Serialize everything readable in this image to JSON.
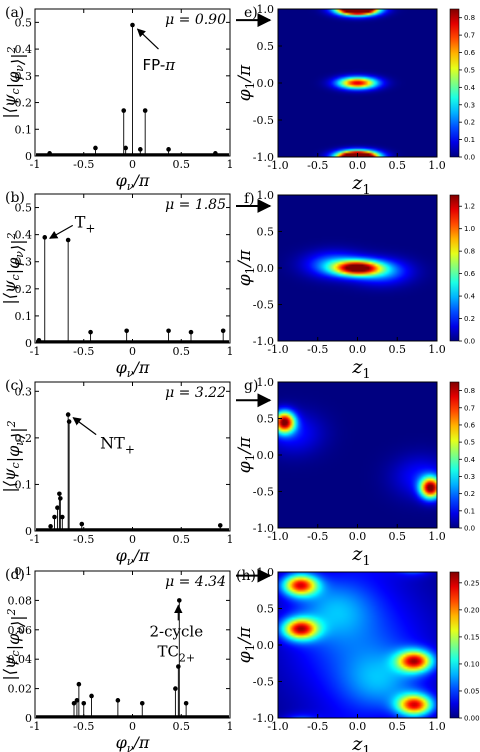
{
  "chart_data": [
    {
      "type": "scatter",
      "panel_label": "(a)",
      "mu_label": "μ = 0.90",
      "annotation": "FP-π",
      "annotation_point": [
        0.0,
        0.49
      ],
      "ylabel": "|⟨ψc|φν⟩|²",
      "xlabel": "φν/π",
      "xlim": [
        -1,
        1
      ],
      "ylim": [
        0,
        0.55
      ],
      "yticks": [
        "0",
        "0.1",
        "0.2",
        "0.3",
        "0.4",
        "0.5"
      ],
      "ytick_values": [
        0,
        0.1,
        0.2,
        0.3,
        0.4,
        0.5
      ],
      "xticks": [
        "-1",
        "-0.5",
        "0",
        "0.5",
        "1"
      ],
      "xtick_values": [
        -1,
        -0.5,
        0,
        0.5,
        1
      ],
      "stems": [
        {
          "x": 0.0,
          "y": 0.49
        },
        {
          "x": -0.09,
          "y": 0.17
        },
        {
          "x": 0.13,
          "y": 0.17
        },
        {
          "x": -0.07,
          "y": 0.03
        },
        {
          "x": 0.08,
          "y": 0.025
        },
        {
          "x": -0.38,
          "y": 0.03
        },
        {
          "x": 0.37,
          "y": 0.025
        },
        {
          "x": -0.85,
          "y": 0.01
        },
        {
          "x": 0.85,
          "y": 0.01
        }
      ]
    },
    {
      "type": "scatter",
      "panel_label": "(b)",
      "mu_label": "μ = 1.85",
      "annotation": "T+",
      "annotation_point": [
        -0.9,
        0.39
      ],
      "ylabel": "|⟨ψc|φν⟩|²",
      "xlabel": "φν/π",
      "xlim": [
        -1,
        1
      ],
      "ylim": [
        0,
        0.55
      ],
      "yticks": [
        "0",
        "0.1",
        "0.2",
        "0.3",
        "0.4",
        "0.5"
      ],
      "ytick_values": [
        0,
        0.1,
        0.2,
        0.3,
        0.4,
        0.5
      ],
      "xticks": [
        "-1",
        "-0.5",
        "0",
        "0.5",
        "1"
      ],
      "xtick_values": [
        -1,
        -0.5,
        0,
        0.5,
        1
      ],
      "stems": [
        {
          "x": -0.9,
          "y": 0.39
        },
        {
          "x": -0.66,
          "y": 0.38
        },
        {
          "x": -0.43,
          "y": 0.04
        },
        {
          "x": -0.06,
          "y": 0.045
        },
        {
          "x": 0.37,
          "y": 0.045
        },
        {
          "x": 0.6,
          "y": 0.04
        },
        {
          "x": 0.93,
          "y": 0.045
        },
        {
          "x": -0.96,
          "y": 0.01
        }
      ]
    },
    {
      "type": "scatter",
      "panel_label": "(c)",
      "mu_label": "μ = 3.22",
      "annotation": "NT+",
      "annotation_point": [
        -0.66,
        0.25
      ],
      "ylabel": "|⟨ψc|φν⟩|²",
      "xlabel": "φν/π",
      "xlim": [
        -1,
        1
      ],
      "ylim": [
        0,
        0.32
      ],
      "yticks": [
        "0",
        "0.1",
        "0.2",
        "0.3"
      ],
      "ytick_values": [
        0,
        0.1,
        0.2,
        0.3
      ],
      "xticks": [
        "-1",
        "-0.5",
        "0",
        "0.5",
        "1"
      ],
      "xtick_values": [
        -1,
        -0.5,
        0,
        0.5,
        1
      ],
      "stems": [
        {
          "x": -0.66,
          "y": 0.25
        },
        {
          "x": -0.65,
          "y": 0.235
        },
        {
          "x": -0.75,
          "y": 0.08
        },
        {
          "x": -0.74,
          "y": 0.07
        },
        {
          "x": -0.77,
          "y": 0.05
        },
        {
          "x": -0.8,
          "y": 0.03
        },
        {
          "x": -0.72,
          "y": 0.03
        },
        {
          "x": -0.52,
          "y": 0.015
        },
        {
          "x": -0.84,
          "y": 0.01
        },
        {
          "x": 0.9,
          "y": 0.012
        }
      ]
    },
    {
      "type": "scatter",
      "panel_label": "(d)",
      "mu_label": "μ = 4.34",
      "annotation": "2-cycle TC2+",
      "annotation_point": [
        0.48,
        0.08
      ],
      "ylabel": "|⟨ψc|φν⟩|²",
      "xlabel": "φν/π",
      "xlim": [
        -1,
        1
      ],
      "ylim": [
        0,
        0.1
      ],
      "yticks": [
        "0",
        "0.02",
        "0.04",
        "0.06",
        "0.08",
        "0.1"
      ],
      "ytick_values": [
        0,
        0.02,
        0.04,
        0.06,
        0.08,
        0.1
      ],
      "xticks": [
        "-1",
        "-0.5",
        "0",
        "0.5",
        "1"
      ],
      "xtick_values": [
        -1,
        -0.5,
        0,
        0.5,
        1
      ],
      "stems": [
        {
          "x": 0.48,
          "y": 0.08
        },
        {
          "x": 0.47,
          "y": 0.035
        },
        {
          "x": 0.44,
          "y": 0.02
        },
        {
          "x": -0.55,
          "y": 0.023
        },
        {
          "x": -0.57,
          "y": 0.012
        },
        {
          "x": -0.5,
          "y": 0.01
        },
        {
          "x": -0.42,
          "y": 0.015
        },
        {
          "x": -0.6,
          "y": 0.01
        },
        {
          "x": 0.55,
          "y": 0.01
        },
        {
          "x": 0.1,
          "y": 0.01
        },
        {
          "x": -0.15,
          "y": 0.012
        }
      ]
    },
    {
      "type": "heatmap",
      "panel_label": "e)",
      "xlabel": "z1",
      "ylabel": "φ1/π",
      "xlim": [
        -1,
        1
      ],
      "ylim": [
        -1,
        1
      ],
      "xticks": [
        "-1.0",
        "-0.5",
        "0.0",
        "0.5",
        "1.0"
      ],
      "yticks": [
        "-1.0",
        "-0.5",
        "0.0",
        "0.5",
        "1.0"
      ],
      "arrow_at_y": 0.85,
      "colorbar_max": 0.85,
      "colorbar_ticks": [
        "0.0",
        "0.1",
        "0.2",
        "0.3",
        "0.4",
        "0.5",
        "0.6",
        "0.7",
        "0.8"
      ],
      "colorbar_tick_values": [
        0,
        0.1,
        0.2,
        0.3,
        0.4,
        0.5,
        0.6,
        0.7,
        0.8
      ],
      "blobs": [
        {
          "z": 0.0,
          "phi": 0.0,
          "sz": 0.17,
          "sp": 0.055,
          "a": 0.78
        },
        {
          "z": 0.0,
          "phi": 1.0,
          "sz": 0.17,
          "sp": 0.055,
          "a": 0.78
        },
        {
          "z": 0.0,
          "phi": -1.0,
          "sz": 0.17,
          "sp": 0.055,
          "a": 0.78
        }
      ]
    },
    {
      "type": "heatmap",
      "panel_label": "f)",
      "xlabel": "z1",
      "ylabel": "φ1/π",
      "xlim": [
        -1,
        1
      ],
      "ylim": [
        -1,
        1
      ],
      "xticks": [
        "-1.0",
        "-0.5",
        "0.0",
        "0.5",
        "1.0"
      ],
      "yticks": [
        "-1.0",
        "-0.5",
        "0.0",
        "0.5",
        "1.0"
      ],
      "arrow_at_y": 0.85,
      "colorbar_max": 1.3,
      "colorbar_ticks": [
        "0.0",
        "0.2",
        "0.4",
        "0.6",
        "0.8",
        "1.0",
        "1.2"
      ],
      "colorbar_tick_values": [
        0,
        0.2,
        0.4,
        0.6,
        0.8,
        1.0,
        1.2
      ],
      "blobs": [
        {
          "z": 0.0,
          "phi": 0.0,
          "sz": 0.2,
          "sp": 0.07,
          "a": 1.25
        },
        {
          "z": -0.3,
          "phi": 0.05,
          "sz": 0.25,
          "sp": 0.12,
          "a": 0.35
        },
        {
          "z": 0.3,
          "phi": -0.05,
          "sz": 0.25,
          "sp": 0.12,
          "a": 0.35
        }
      ]
    },
    {
      "type": "heatmap",
      "panel_label": "g)",
      "xlabel": "z1",
      "ylabel": "φ1/π",
      "xlim": [
        -1,
        1
      ],
      "ylim": [
        -1,
        1
      ],
      "xticks": [
        "-1.0",
        "-0.5",
        "0.0",
        "0.5",
        "1.0"
      ],
      "yticks": [
        "-1.0",
        "-0.5",
        "0.0",
        "0.5",
        "1.0"
      ],
      "arrow_at_y": 0.75,
      "colorbar_max": 0.85,
      "colorbar_ticks": [
        "0.0",
        "0.1",
        "0.2",
        "0.3",
        "0.4",
        "0.5",
        "0.6",
        "0.7",
        "0.8"
      ],
      "colorbar_tick_values": [
        0,
        0.1,
        0.2,
        0.3,
        0.4,
        0.5,
        0.6,
        0.7,
        0.8
      ],
      "blobs": [
        {
          "z": -0.92,
          "phi": 0.45,
          "sz": 0.09,
          "sp": 0.1,
          "a": 0.82
        },
        {
          "z": 0.92,
          "phi": -0.45,
          "sz": 0.09,
          "sp": 0.1,
          "a": 0.82
        },
        {
          "z": -0.8,
          "phi": 0.3,
          "sz": 0.25,
          "sp": 0.2,
          "a": 0.12
        },
        {
          "z": 0.8,
          "phi": -0.3,
          "sz": 0.25,
          "sp": 0.2,
          "a": 0.12
        }
      ]
    },
    {
      "type": "heatmap",
      "panel_label": "(h)",
      "xlabel": "z1",
      "ylabel": "φ1/π",
      "xlim": [
        -1,
        1
      ],
      "ylim": [
        -1,
        1
      ],
      "xticks": [
        "-1.0",
        "-0.5",
        "0.0",
        "0.5",
        "1.0"
      ],
      "yticks": [
        "-1.0",
        "-0.5",
        "0.0",
        "0.5",
        "1.0"
      ],
      "arrow_at_y": 0.95,
      "colorbar_max": 0.27,
      "colorbar_ticks": [
        "0.00",
        "0.05",
        "0.10",
        "0.15",
        "0.20",
        "0.25"
      ],
      "colorbar_tick_values": [
        0,
        0.05,
        0.1,
        0.15,
        0.2,
        0.25
      ],
      "blobs": [
        {
          "z": -0.72,
          "phi": 0.82,
          "sz": 0.15,
          "sp": 0.1,
          "a": 0.22
        },
        {
          "z": -0.72,
          "phi": 0.22,
          "sz": 0.15,
          "sp": 0.1,
          "a": 0.22
        },
        {
          "z": 0.72,
          "phi": -0.22,
          "sz": 0.15,
          "sp": 0.1,
          "a": 0.22
        },
        {
          "z": 0.72,
          "phi": -0.82,
          "sz": 0.15,
          "sp": 0.1,
          "a": 0.22
        },
        {
          "z": -0.3,
          "phi": 0.5,
          "sz": 0.35,
          "sp": 0.3,
          "a": 0.05
        },
        {
          "z": 0.3,
          "phi": -0.5,
          "sz": 0.35,
          "sp": 0.3,
          "a": 0.05
        },
        {
          "z": 0.0,
          "phi": 0.0,
          "sz": 0.7,
          "sp": 0.7,
          "a": 0.05
        }
      ]
    }
  ]
}
